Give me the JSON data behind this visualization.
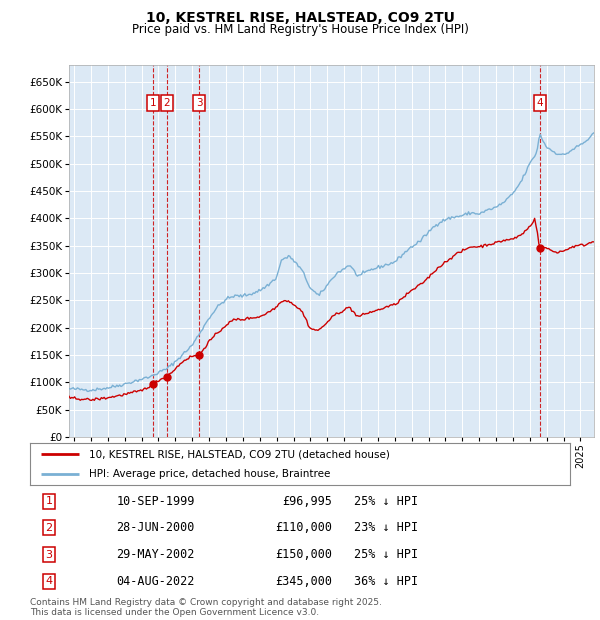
{
  "title": "10, KESTREL RISE, HALSTEAD, CO9 2TU",
  "subtitle": "Price paid vs. HM Land Registry's House Price Index (HPI)",
  "ylim": [
    0,
    680000
  ],
  "xlim_start": 1994.7,
  "xlim_end": 2025.8,
  "background_color": "#dce9f5",
  "grid_color": "#ffffff",
  "line_color_property": "#cc0000",
  "line_color_hpi": "#7ab0d4",
  "transactions": [
    {
      "num": 1,
      "date_label": "10-SEP-1999",
      "date_x": 1999.69,
      "price": 96995,
      "pct": "25%",
      "dir": "↓"
    },
    {
      "num": 2,
      "date_label": "28-JUN-2000",
      "date_x": 2000.49,
      "price": 110000,
      "pct": "23%",
      "dir": "↓"
    },
    {
      "num": 3,
      "date_label": "29-MAY-2002",
      "date_x": 2002.41,
      "price": 150000,
      "pct": "25%",
      "dir": "↓"
    },
    {
      "num": 4,
      "date_label": "04-AUG-2022",
      "date_x": 2022.59,
      "price": 345000,
      "pct": "36%",
      "dir": "↓"
    }
  ],
  "hpi_keypoints": [
    [
      1994.7,
      88000
    ],
    [
      1995.0,
      88000
    ],
    [
      1996.0,
      86000
    ],
    [
      1997.0,
      90000
    ],
    [
      1998.0,
      97000
    ],
    [
      1999.0,
      106000
    ],
    [
      1999.5,
      110000
    ],
    [
      2000.0,
      118000
    ],
    [
      2000.5,
      125000
    ],
    [
      2001.0,
      138000
    ],
    [
      2001.5,
      153000
    ],
    [
      2002.0,
      168000
    ],
    [
      2002.5,
      193000
    ],
    [
      2003.0,
      218000
    ],
    [
      2003.5,
      238000
    ],
    [
      2004.0,
      252000
    ],
    [
      2004.5,
      258000
    ],
    [
      2005.0,
      258000
    ],
    [
      2005.5,
      262000
    ],
    [
      2006.0,
      268000
    ],
    [
      2006.5,
      278000
    ],
    [
      2007.0,
      292000
    ],
    [
      2007.3,
      325000
    ],
    [
      2007.8,
      330000
    ],
    [
      2008.5,
      305000
    ],
    [
      2009.0,
      272000
    ],
    [
      2009.5,
      258000
    ],
    [
      2010.0,
      278000
    ],
    [
      2010.5,
      298000
    ],
    [
      2011.0,
      308000
    ],
    [
      2011.3,
      315000
    ],
    [
      2011.8,
      295000
    ],
    [
      2012.0,
      296000
    ],
    [
      2012.5,
      305000
    ],
    [
      2013.0,
      310000
    ],
    [
      2013.5,
      315000
    ],
    [
      2014.0,
      320000
    ],
    [
      2014.5,
      335000
    ],
    [
      2015.0,
      348000
    ],
    [
      2015.5,
      358000
    ],
    [
      2016.0,
      375000
    ],
    [
      2016.5,
      390000
    ],
    [
      2017.0,
      398000
    ],
    [
      2017.5,
      402000
    ],
    [
      2018.0,
      405000
    ],
    [
      2018.5,
      410000
    ],
    [
      2019.0,
      408000
    ],
    [
      2019.5,
      415000
    ],
    [
      2020.0,
      420000
    ],
    [
      2020.5,
      430000
    ],
    [
      2021.0,
      445000
    ],
    [
      2021.5,
      468000
    ],
    [
      2022.0,
      500000
    ],
    [
      2022.4,
      520000
    ],
    [
      2022.6,
      555000
    ],
    [
      2022.8,
      540000
    ],
    [
      2023.0,
      530000
    ],
    [
      2023.5,
      520000
    ],
    [
      2024.0,
      515000
    ],
    [
      2024.5,
      525000
    ],
    [
      2025.3,
      540000
    ],
    [
      2025.8,
      555000
    ]
  ],
  "prop_keypoints": [
    [
      1994.7,
      72000
    ],
    [
      1995.0,
      71000
    ],
    [
      1996.0,
      68000
    ],
    [
      1997.0,
      72000
    ],
    [
      1998.0,
      78000
    ],
    [
      1999.0,
      85000
    ],
    [
      1999.69,
      96995
    ],
    [
      2000.0,
      104000
    ],
    [
      2000.49,
      110000
    ],
    [
      2001.0,
      125000
    ],
    [
      2001.5,
      140000
    ],
    [
      2002.0,
      148000
    ],
    [
      2002.41,
      150000
    ],
    [
      2003.0,
      175000
    ],
    [
      2003.5,
      190000
    ],
    [
      2004.0,
      205000
    ],
    [
      2004.5,
      215000
    ],
    [
      2005.0,
      215000
    ],
    [
      2005.5,
      218000
    ],
    [
      2006.0,
      220000
    ],
    [
      2006.5,
      228000
    ],
    [
      2007.0,
      238000
    ],
    [
      2007.3,
      250000
    ],
    [
      2007.8,
      248000
    ],
    [
      2008.5,
      230000
    ],
    [
      2009.0,
      198000
    ],
    [
      2009.5,
      195000
    ],
    [
      2010.0,
      210000
    ],
    [
      2010.5,
      225000
    ],
    [
      2011.0,
      232000
    ],
    [
      2011.3,
      238000
    ],
    [
      2011.8,
      220000
    ],
    [
      2012.0,
      222000
    ],
    [
      2012.5,
      228000
    ],
    [
      2013.0,
      232000
    ],
    [
      2013.5,
      238000
    ],
    [
      2014.0,
      242000
    ],
    [
      2014.5,
      255000
    ],
    [
      2015.0,
      268000
    ],
    [
      2015.5,
      278000
    ],
    [
      2016.0,
      292000
    ],
    [
      2016.5,
      308000
    ],
    [
      2017.0,
      320000
    ],
    [
      2017.5,
      332000
    ],
    [
      2018.0,
      340000
    ],
    [
      2018.5,
      348000
    ],
    [
      2019.0,
      348000
    ],
    [
      2019.5,
      352000
    ],
    [
      2020.0,
      355000
    ],
    [
      2020.5,
      360000
    ],
    [
      2021.0,
      362000
    ],
    [
      2021.5,
      370000
    ],
    [
      2022.0,
      385000
    ],
    [
      2022.3,
      400000
    ],
    [
      2022.59,
      345000
    ],
    [
      2022.8,
      348000
    ],
    [
      2023.0,
      345000
    ],
    [
      2023.5,
      338000
    ],
    [
      2024.0,
      340000
    ],
    [
      2024.5,
      348000
    ],
    [
      2025.3,
      352000
    ],
    [
      2025.8,
      358000
    ]
  ],
  "legend_property_label": "10, KESTREL RISE, HALSTEAD, CO9 2TU (detached house)",
  "legend_hpi_label": "HPI: Average price, detached house, Braintree",
  "footer_line1": "Contains HM Land Registry data © Crown copyright and database right 2025.",
  "footer_line2": "This data is licensed under the Open Government Licence v3.0."
}
